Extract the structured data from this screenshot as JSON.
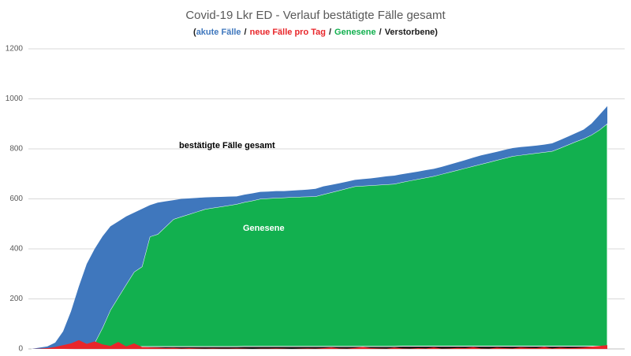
{
  "chart_data": {
    "type": "area",
    "title": "Covid-19 Lkr ED - Verlauf bestätigte Fälle gesamt",
    "legend_open": "(",
    "legend_separator": "/",
    "legend_close": ")",
    "annotations": [
      "bestätigte Fälle gesamt",
      "Genesene"
    ],
    "ylim": [
      0,
      1200
    ],
    "yticks": [
      0,
      200,
      400,
      600,
      800,
      1000,
      1200
    ],
    "grid": true,
    "categories": [
      null,
      null,
      null,
      null,
      null,
      null,
      null,
      null,
      null,
      null,
      null,
      null,
      null,
      null,
      null,
      null,
      null,
      null,
      null,
      null,
      null,
      null,
      null,
      null,
      null,
      null,
      null,
      null,
      null,
      null,
      null,
      null,
      null,
      null,
      null,
      null,
      null,
      null,
      null,
      null,
      null,
      null,
      null,
      null,
      null,
      null,
      null,
      null,
      null,
      null,
      null,
      null,
      null,
      null,
      null,
      null,
      null,
      null,
      null,
      null,
      null,
      null,
      null,
      null,
      null,
      null,
      null,
      null,
      null,
      null,
      null,
      null,
      null,
      null
    ],
    "series": [
      {
        "name": "akute Fälle",
        "color": "#3f77bd",
        "stacked": true,
        "values": [
          0,
          5,
          10,
          25,
          70,
          149,
          248,
          332,
          376,
          365,
          334,
          303,
          272,
          237,
          231,
          126,
          126,
          101,
          76,
          71,
          63,
          55,
          47,
          43,
          39,
          35,
          31,
          30,
          29,
          28,
          27,
          27,
          26,
          26,
          27,
          28,
          30,
          32,
          30,
          28,
          27,
          26,
          27,
          28,
          30,
          32,
          33,
          32,
          31,
          30,
          30,
          29,
          29,
          30,
          31,
          32,
          34,
          35,
          34,
          33,
          33,
          32,
          32,
          31,
          30,
          30,
          31,
          32,
          33,
          34,
          36,
          45,
          60,
          70
        ]
      },
      {
        "name": "neue Fälle pro Tag",
        "color": "#e8262a",
        "stacked": false,
        "values": [
          0,
          1,
          3,
          8,
          15,
          22,
          35,
          20,
          30,
          18,
          12,
          28,
          10,
          22,
          8,
          6,
          5,
          3,
          4,
          2,
          3,
          2,
          1,
          2,
          1,
          1,
          2,
          1,
          0,
          1,
          1,
          2,
          1,
          0,
          1,
          2,
          1,
          3,
          6,
          2,
          1,
          4,
          8,
          3,
          2,
          1,
          5,
          2,
          1,
          3,
          2,
          6,
          1,
          2,
          4,
          3,
          7,
          2,
          1,
          5,
          3,
          2,
          6,
          4,
          3,
          8,
          2,
          5,
          3,
          4,
          6,
          9,
          12,
          15
        ]
      },
      {
        "name": "Genesene",
        "color": "#12b04f",
        "stacked": true,
        "values": [
          0,
          0,
          0,
          0,
          0,
          0,
          0,
          5,
          20,
          80,
          150,
          200,
          250,
          300,
          320,
          440,
          450,
          480,
          510,
          520,
          530,
          540,
          550,
          555,
          560,
          565,
          570,
          577,
          583,
          590,
          592,
          594,
          595,
          597,
          598,
          599,
          600,
          608,
          616,
          624,
          632,
          640,
          642,
          644,
          646,
          648,
          650,
          656,
          662,
          668,
          674,
          680,
          688,
          696,
          704,
          712,
          720,
          728,
          736,
          744,
          752,
          760,
          764,
          768,
          772,
          776,
          780,
          792,
          805,
          818,
          830,
          845,
          865,
          890
        ]
      },
      {
        "name": "Verstorbene",
        "color": "#1a1a1a",
        "stacked": true,
        "values": [
          0,
          0,
          0,
          0,
          0,
          1,
          2,
          3,
          4,
          5,
          6,
          7,
          8,
          8,
          9,
          9,
          9,
          9,
          9,
          9,
          9,
          9,
          9,
          9,
          9,
          9,
          9,
          10,
          10,
          10,
          10,
          10,
          10,
          10,
          10,
          10,
          10,
          10,
          10,
          10,
          10,
          10,
          10,
          10,
          10,
          10,
          10,
          11,
          11,
          11,
          11,
          11,
          11,
          11,
          11,
          11,
          11,
          11,
          11,
          11,
          11,
          11,
          11,
          11,
          11,
          11,
          11,
          11,
          11,
          11,
          11,
          11,
          11,
          11
        ]
      }
    ]
  }
}
